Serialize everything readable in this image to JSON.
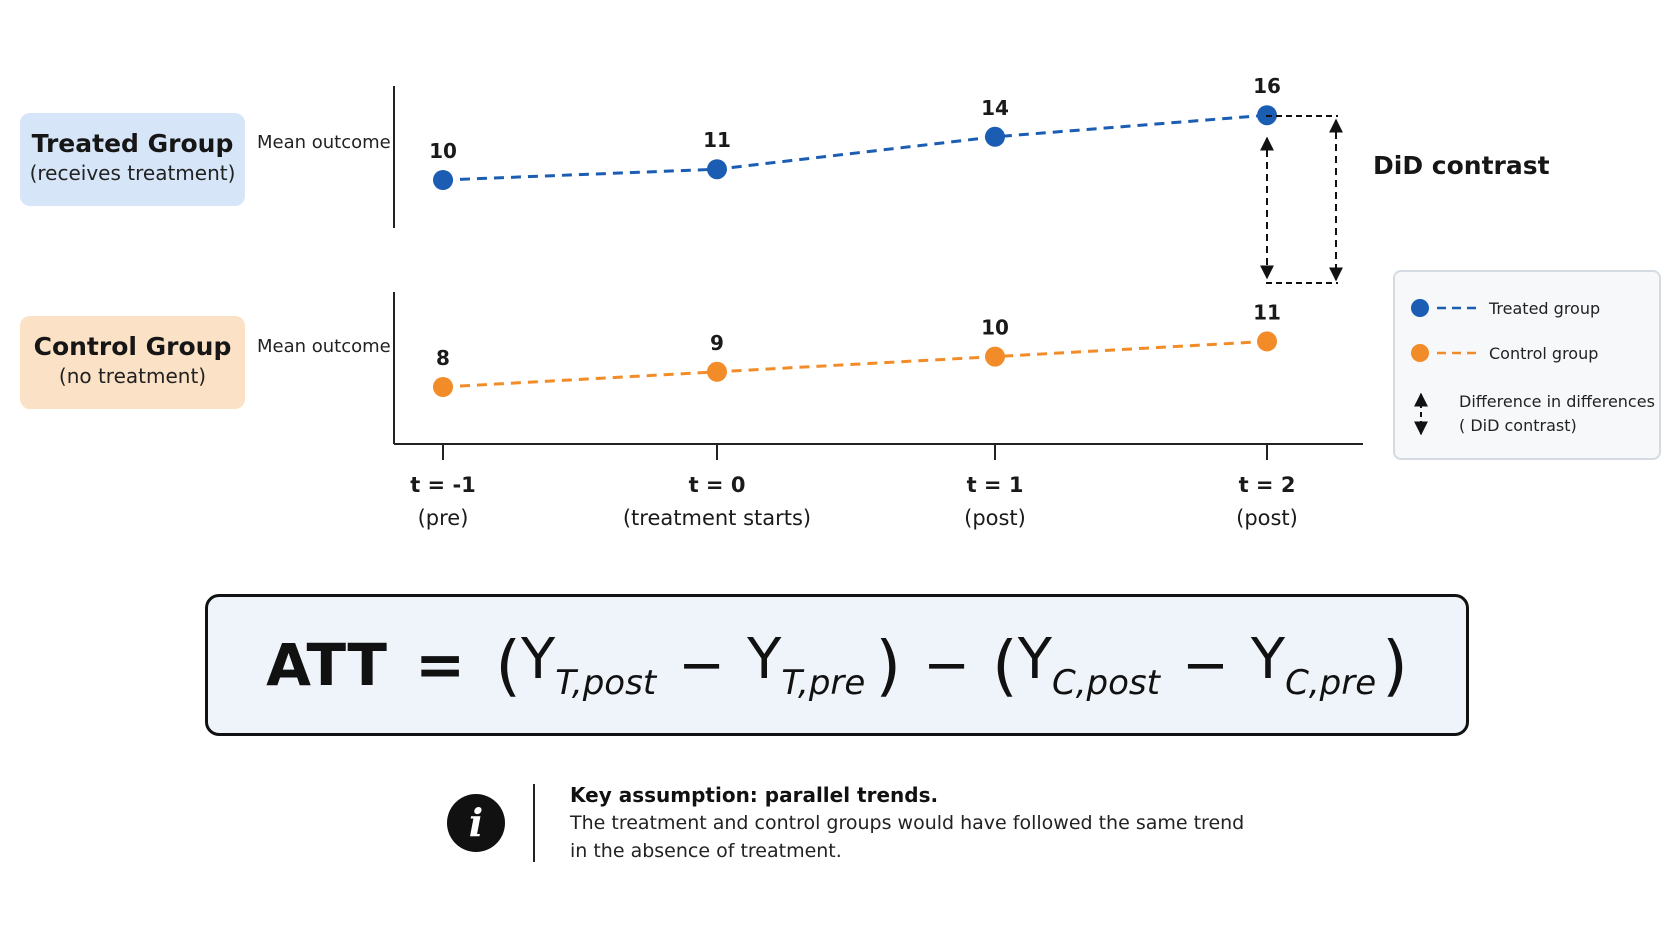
{
  "groups": {
    "treated": {
      "name": "Treated Group",
      "subtitle": "(receives treatment)",
      "ylabel": "Mean outcome"
    },
    "control": {
      "name": "Control Group",
      "subtitle": "(no treatment)",
      "ylabel": "Mean outcome"
    }
  },
  "time_axis": [
    {
      "t": "t = -1",
      "phase": "(pre)"
    },
    {
      "t": "t = 0",
      "phase": "(treatment starts)"
    },
    {
      "t": "t = 1",
      "phase": "(post)"
    },
    {
      "t": "t = 2",
      "phase": "(post)"
    }
  ],
  "did_label": "DiD contrast",
  "legend": {
    "treated": "Treated group",
    "control": "Control group",
    "did_line1": "Difference in differences",
    "did_line2": "( DiD contrast)"
  },
  "formula": {
    "lhs": "ATT",
    "eq": "=",
    "open": "(",
    "close": ")",
    "minus": "−",
    "y": "Y",
    "t_post": "T,post",
    "t_pre": "T,pre",
    "c_post": "C,post",
    "c_pre": "C,pre"
  },
  "info": {
    "icon": "i",
    "title": "Key assumption: parallel trends.",
    "body_line1": "The treatment and control groups would have followed the same trend",
    "body_line2": "in the absence of treatment."
  },
  "colors": {
    "treated": "#1a5db3",
    "control": "#f28c28"
  },
  "chart_data": {
    "type": "line",
    "categories": [
      "t = -1",
      "t = 0",
      "t = 1",
      "t = 2"
    ],
    "series": [
      {
        "name": "Treated group",
        "values": [
          10,
          11,
          14,
          16
        ]
      },
      {
        "name": "Control group",
        "values": [
          8,
          9,
          10,
          11
        ]
      }
    ]
  }
}
